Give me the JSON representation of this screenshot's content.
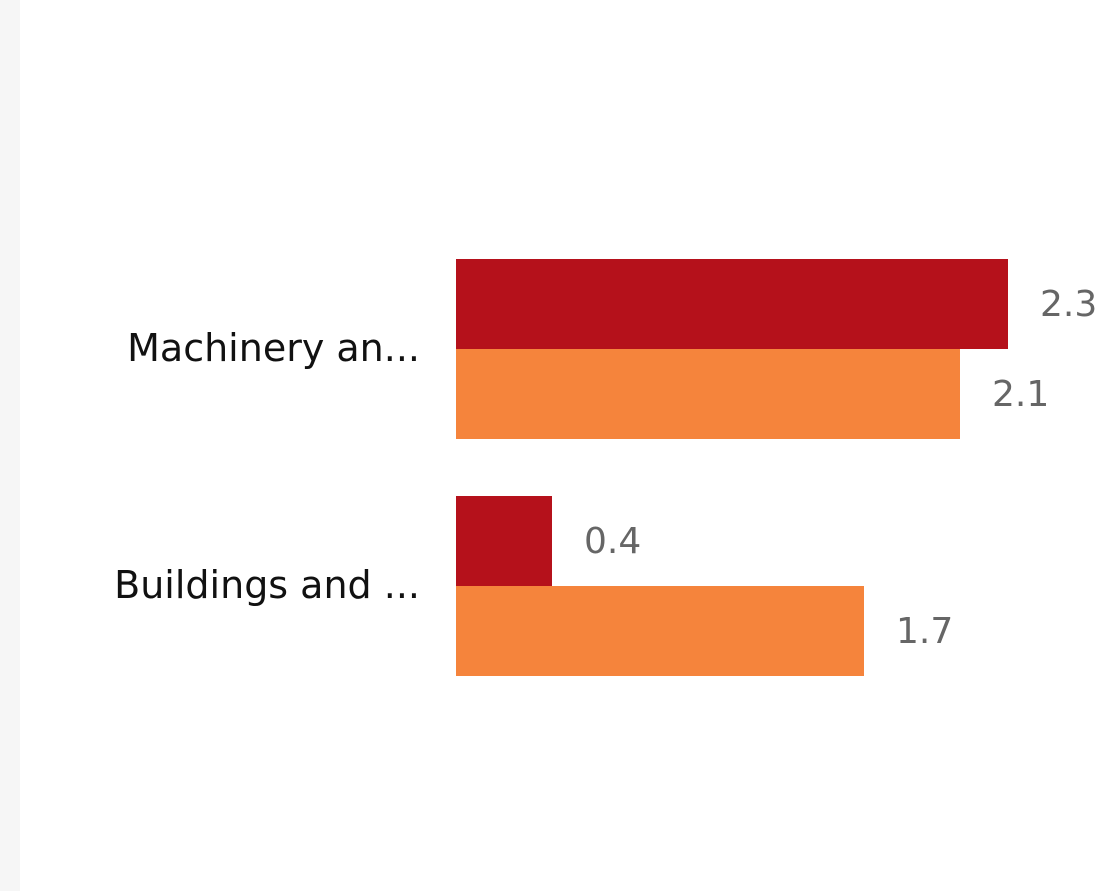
{
  "colors": {
    "series_1": "#b5111b",
    "series_2": "#f5843c",
    "category_label": "#111111",
    "data_label": "#666666",
    "side_panel": "#f6f6f6"
  },
  "chart_data": {
    "type": "bar",
    "orientation": "horizontal",
    "categories": [
      "Machinery an...",
      "Buildings and ..."
    ],
    "series": [
      {
        "values": [
          2.3,
          0.4
        ]
      },
      {
        "values": [
          2.1,
          1.7
        ]
      }
    ],
    "data_labels": [
      [
        "2.3",
        "0.4"
      ],
      [
        "2.1",
        "1.7"
      ]
    ],
    "xlim": [
      0,
      2.3
    ],
    "grid": false,
    "legend": "none"
  }
}
